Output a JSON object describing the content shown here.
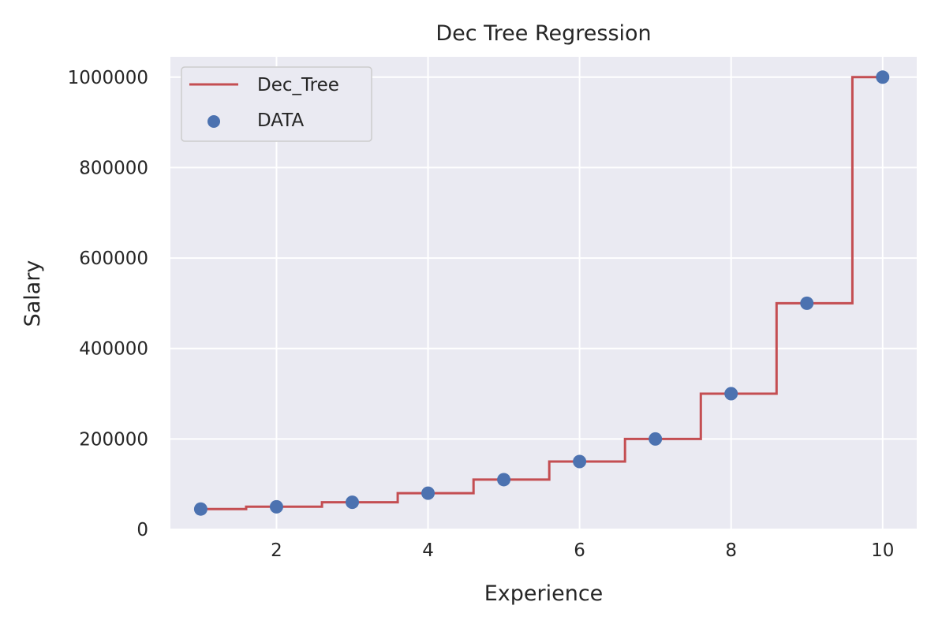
{
  "chart_data": {
    "type": "line",
    "title": "Dec Tree Regression",
    "xlabel": "Experience",
    "ylabel": "Salary",
    "xlim": [
      0.6,
      10.45
    ],
    "ylim": [
      0,
      1045000
    ],
    "xticks": [
      2,
      4,
      6,
      8,
      10
    ],
    "yticks": [
      0,
      200000,
      400000,
      600000,
      800000,
      1000000
    ],
    "grid": true,
    "legend_position": "top-left",
    "series": [
      {
        "name": "Dec_Tree",
        "kind": "step-line",
        "color": "#c44e52",
        "x": [
          1.0,
          1.6,
          1.6,
          2.6,
          2.6,
          3.6,
          3.6,
          4.6,
          4.6,
          5.6,
          5.6,
          6.6,
          6.6,
          7.6,
          7.6,
          8.6,
          8.6,
          9.6,
          9.6,
          10.0
        ],
        "y": [
          45000,
          45000,
          50000,
          50000,
          60000,
          60000,
          80000,
          80000,
          110000,
          110000,
          150000,
          150000,
          200000,
          200000,
          300000,
          300000,
          500000,
          500000,
          1000000,
          1000000
        ]
      },
      {
        "name": "DATA",
        "kind": "scatter",
        "color": "#4c72b0",
        "x": [
          1,
          2,
          3,
          4,
          5,
          6,
          7,
          8,
          9,
          10
        ],
        "y": [
          45000,
          50000,
          60000,
          80000,
          110000,
          150000,
          200000,
          300000,
          500000,
          1000000
        ]
      }
    ],
    "colors": {
      "plot_background": "#eaeaf2",
      "grid": "#ffffff",
      "text": "#262626"
    }
  }
}
